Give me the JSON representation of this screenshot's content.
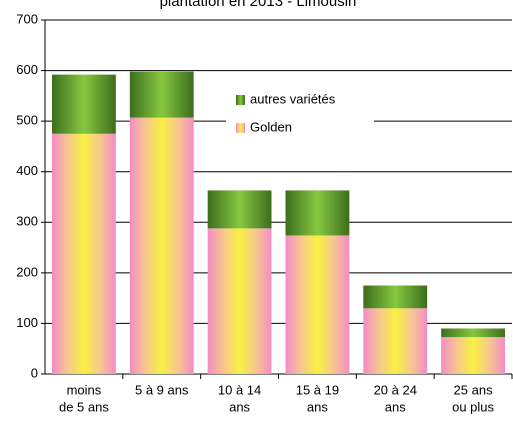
{
  "chart_data": {
    "type": "stacked_bar",
    "title": "plantation en 2013 - Limousin",
    "categories": [
      [
        "moins",
        "de 5 ans"
      ],
      [
        "5 à 9 ans"
      ],
      [
        "10 à 14",
        "ans"
      ],
      [
        "15 à 19",
        "ans"
      ],
      [
        "20 à 24",
        "ans"
      ],
      [
        "25 ans",
        "ou plus"
      ]
    ],
    "series": [
      {
        "name": "Golden",
        "color": "#f08fc8",
        "values": [
          475,
          507,
          288,
          274,
          130,
          73
        ]
      },
      {
        "name": "autres variétés",
        "color": "#5a9a2a",
        "values": [
          117,
          91,
          75,
          89,
          45,
          17
        ]
      }
    ],
    "ylim": [
      0,
      700
    ],
    "yticks": [
      0,
      100,
      200,
      300,
      400,
      500,
      600,
      700
    ],
    "grid": true,
    "legend": "top-center"
  }
}
